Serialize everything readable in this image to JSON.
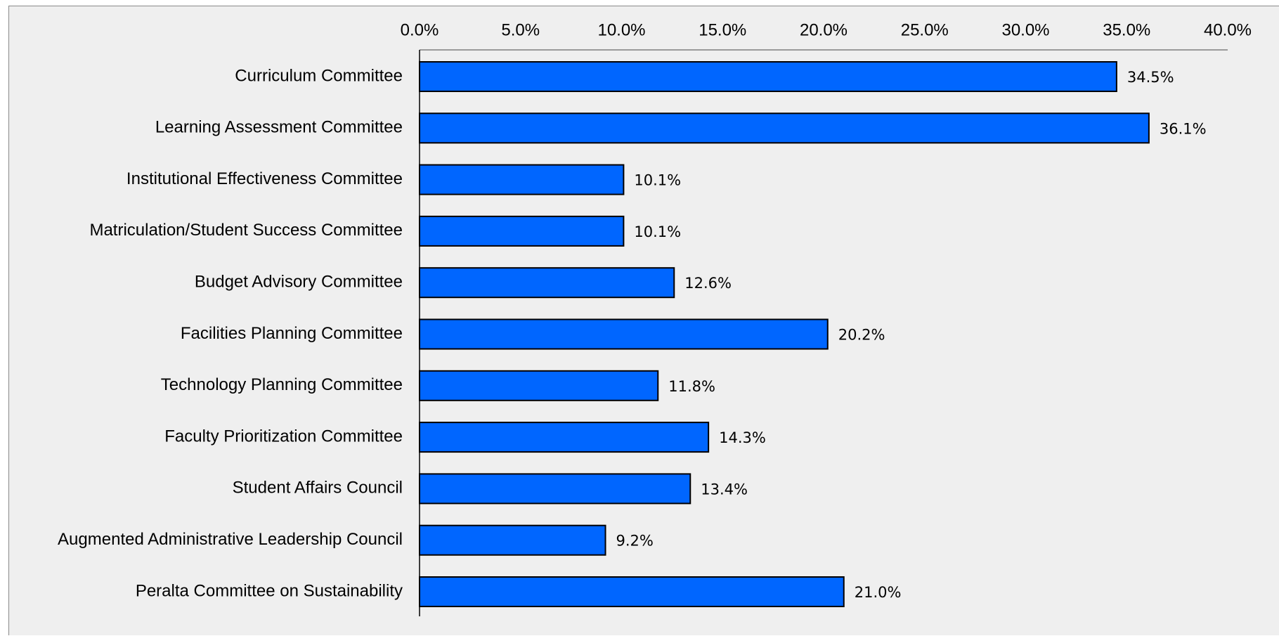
{
  "chart_data": {
    "type": "bar",
    "orientation": "horizontal",
    "categories": [
      "Curriculum Committee",
      "Learning Assessment Committee",
      "Institutional Effectiveness Committee",
      "Matriculation/Student Success Committee",
      "Budget Advisory Committee",
      "Facilities Planning Committee",
      "Technology Planning Committee",
      "Faculty Prioritization Committee",
      "Student Affairs Council",
      "Augmented Administrative Leadership Council",
      "Peralta Committee on Sustainability"
    ],
    "values": [
      34.5,
      36.1,
      10.1,
      10.1,
      12.6,
      20.2,
      11.8,
      14.3,
      13.4,
      9.2,
      21.0
    ],
    "value_labels": [
      "34.5%",
      "36.1%",
      "10.1%",
      "10.1%",
      "12.6%",
      "20.2%",
      "11.8%",
      "14.3%",
      "13.4%",
      "9.2%",
      "21.0%"
    ],
    "xlim": [
      0,
      40
    ],
    "x_ticks": [
      0,
      5,
      10,
      15,
      20,
      25,
      30,
      35,
      40
    ],
    "x_tick_labels": [
      "0.0%",
      "5.0%",
      "10.0%",
      "15.0%",
      "20.0%",
      "25.0%",
      "30.0%",
      "35.0%",
      "40.0%"
    ],
    "x_axis_position": "top",
    "grid": false,
    "legend": "none",
    "title": "",
    "xlabel": "",
    "ylabel": "",
    "bar_color": "#0066ff",
    "bar_edge_color": "#000000",
    "background_color": "#efefef"
  }
}
